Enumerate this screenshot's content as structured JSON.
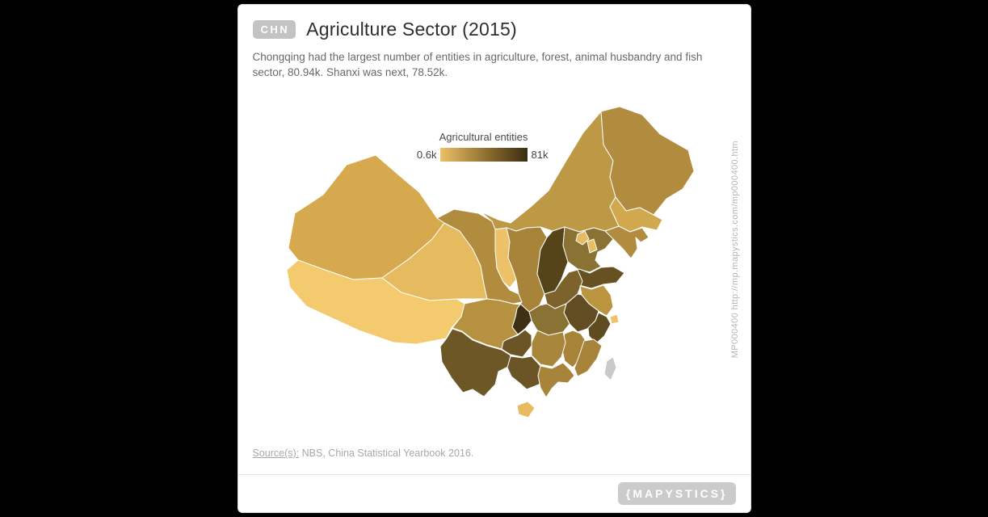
{
  "header": {
    "badge": "CHN",
    "title": "Agriculture Sector (2015)",
    "subtitle": "Chongqing had the largest number of entities in agriculture, forest, animal husbandry and fish sector, 80.94k. Shanxi was next, 78.52k."
  },
  "legend": {
    "title": "Agricultural entities",
    "min_label": "0.6k",
    "max_label": "81k",
    "gradient": [
      "#ecc166",
      "#8a6c2f",
      "#3a2c10"
    ]
  },
  "source": {
    "label": "Source(s):",
    "text": "NBS, China Statistical Yearbook 2016."
  },
  "watermark": "MP000400 http://mp.mapystics.com/mp000400.htm",
  "footer": {
    "logo": "{MAPYSTICS}"
  },
  "chart_data": {
    "type": "choropleth_map",
    "region": "China",
    "title": "Agriculture Sector (2015)",
    "metric": "Agricultural entities",
    "year": "2015",
    "scale": {
      "min_label": "0.6k",
      "max_label": "81k",
      "min_k": 0.6,
      "max_k": 81
    },
    "legend_position": "top-center-of-map",
    "highlights": [
      {
        "name": "Chongqing",
        "value_k": 80.94,
        "rank": 1
      },
      {
        "name": "Shanxi",
        "value_k": 78.52,
        "rank": 2
      }
    ],
    "no_data_color": "#c9c9c9",
    "provinces": [
      {
        "name": "Xinjiang",
        "fill": "#d6a94f"
      },
      {
        "name": "Tibet",
        "fill": "#f4ca6e"
      },
      {
        "name": "Inner Mongolia",
        "fill": "#bd9845"
      },
      {
        "name": "Qinghai",
        "fill": "#e6bb60"
      },
      {
        "name": "Gansu",
        "fill": "#b18c3e"
      },
      {
        "name": "Heilongjiang",
        "fill": "#b18c3e"
      },
      {
        "name": "Jilin",
        "fill": "#d2a84e"
      },
      {
        "name": "Liaoning",
        "fill": "#b18c3e"
      },
      {
        "name": "Ningxia",
        "fill": "#ecc167"
      },
      {
        "name": "Shaanxi",
        "fill": "#a8843a"
      },
      {
        "name": "Shanxi",
        "fill": "#554319"
      },
      {
        "name": "Hebei",
        "fill": "#8a7134"
      },
      {
        "name": "Shandong",
        "fill": "#675122"
      },
      {
        "name": "Henan",
        "fill": "#7c632b"
      },
      {
        "name": "Jiangsu",
        "fill": "#bb9440"
      },
      {
        "name": "Anhui",
        "fill": "#614d21"
      },
      {
        "name": "Hubei",
        "fill": "#8a7134"
      },
      {
        "name": "Chongqing",
        "fill": "#3d3013"
      },
      {
        "name": "Sichuan",
        "fill": "#b6913f"
      },
      {
        "name": "Zhejiang",
        "fill": "#5f4b20"
      },
      {
        "name": "Jiangxi",
        "fill": "#a8843a"
      },
      {
        "name": "Hunan",
        "fill": "#a8873c"
      },
      {
        "name": "Fujian",
        "fill": "#a8843a"
      },
      {
        "name": "Guizhou",
        "fill": "#6b5526"
      },
      {
        "name": "Yunnan",
        "fill": "#6d5727"
      },
      {
        "name": "Guangxi",
        "fill": "#6b5526"
      },
      {
        "name": "Guangdong",
        "fill": "#a8843a"
      },
      {
        "name": "Hainan",
        "fill": "#e7bb5e"
      },
      {
        "name": "Taiwan",
        "fill": "#c9c9c9",
        "no_data": true
      },
      {
        "name": "Beijing",
        "fill": "#e5ba60"
      },
      {
        "name": "Tianjin",
        "fill": "#e8bd62"
      },
      {
        "name": "Shanghai",
        "fill": "#efc369"
      }
    ]
  }
}
